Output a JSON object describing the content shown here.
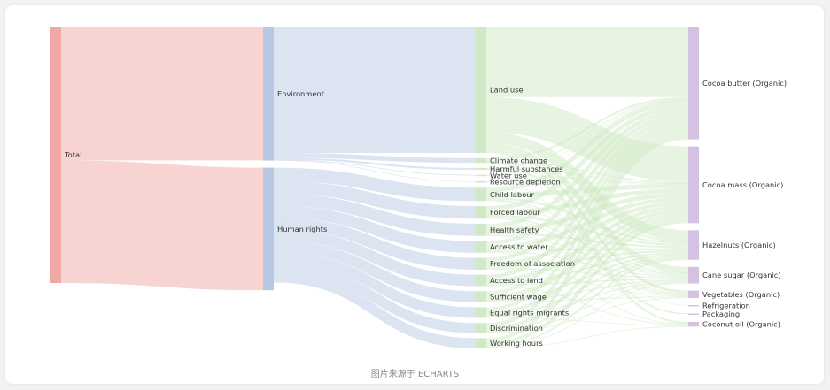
{
  "caption": "图片来源于 ECHARTS",
  "chart_data": {
    "type": "sankey",
    "colors": {
      "Total": "#f0a9a6",
      "Environment": "#b7c9e2",
      "Human rights": "#b7c9e2",
      "stage3": "#cfeac4",
      "stage4": "#d5c2e2"
    },
    "nodes": [
      {
        "name": "Total",
        "depth": 0
      },
      {
        "name": "Environment",
        "depth": 1
      },
      {
        "name": "Human rights",
        "depth": 1
      },
      {
        "name": "Land use",
        "depth": 2
      },
      {
        "name": "Climate change",
        "depth": 2
      },
      {
        "name": "Harmful substances",
        "depth": 2
      },
      {
        "name": "Water use",
        "depth": 2
      },
      {
        "name": "Resource depletion",
        "depth": 2
      },
      {
        "name": "Child labour",
        "depth": 2
      },
      {
        "name": "Forced labour",
        "depth": 2
      },
      {
        "name": "Health safety",
        "depth": 2
      },
      {
        "name": "Access to water",
        "depth": 2
      },
      {
        "name": "Freedom of association",
        "depth": 2
      },
      {
        "name": "Access to land",
        "depth": 2
      },
      {
        "name": "Sufficient wage",
        "depth": 2
      },
      {
        "name": "Equal rights migrants",
        "depth": 2
      },
      {
        "name": "Discrimination",
        "depth": 2
      },
      {
        "name": "Working hours",
        "depth": 2
      },
      {
        "name": "Cocoa butter (Organic)",
        "depth": 3
      },
      {
        "name": "Cocoa mass (Organic)",
        "depth": 3
      },
      {
        "name": "Hazelnuts (Organic)",
        "depth": 3
      },
      {
        "name": "Cane sugar (Organic)",
        "depth": 3
      },
      {
        "name": "Vegetables (Organic)",
        "depth": 3
      },
      {
        "name": "Refrigeration",
        "depth": 3
      },
      {
        "name": "Packaging",
        "depth": 3
      },
      {
        "name": "Coconut oil (Organic)",
        "depth": 3
      }
    ],
    "links": [
      {
        "source": "Total",
        "target": "Environment",
        "value": 0.342
      },
      {
        "source": "Total",
        "target": "Human rights",
        "value": 0.313
      },
      {
        "source": "Environment",
        "target": "Land use",
        "value": 0.323
      },
      {
        "source": "Environment",
        "target": "Climate change",
        "value": 0.012
      },
      {
        "source": "Environment",
        "target": "Harmful substances",
        "value": 0.0046
      },
      {
        "source": "Environment",
        "target": "Water use",
        "value": 0.0017
      },
      {
        "source": "Environment",
        "target": "Resource depletion",
        "value": 0.0011
      },
      {
        "source": "Human rights",
        "target": "Child labour",
        "value": 0.034
      },
      {
        "source": "Human rights",
        "target": "Forced labour",
        "value": 0.032
      },
      {
        "source": "Human rights",
        "target": "Health safety",
        "value": 0.031
      },
      {
        "source": "Human rights",
        "target": "Access to water",
        "value": 0.03
      },
      {
        "source": "Human rights",
        "target": "Freedom of association",
        "value": 0.03
      },
      {
        "source": "Human rights",
        "target": "Access to land",
        "value": 0.029
      },
      {
        "source": "Human rights",
        "target": "Sufficient wage",
        "value": 0.028
      },
      {
        "source": "Human rights",
        "target": "Equal rights migrants",
        "value": 0.027
      },
      {
        "source": "Human rights",
        "target": "Discrimination",
        "value": 0.026
      },
      {
        "source": "Human rights",
        "target": "Working hours",
        "value": 0.026
      },
      {
        "source": "Land use",
        "target": "Cocoa butter (Organic)",
        "value": 0.18
      },
      {
        "source": "Land use",
        "target": "Cocoa mass (Organic)",
        "value": 0.09
      },
      {
        "source": "Land use",
        "target": "Hazelnuts (Organic)",
        "value": 0.028
      },
      {
        "source": "Land use",
        "target": "Cane sugar (Organic)",
        "value": 0.014
      },
      {
        "source": "Land use",
        "target": "Vegetables (Organic)",
        "value": 0.007
      },
      {
        "source": "Land use",
        "target": "Coconut oil (Organic)",
        "value": 0.004
      },
      {
        "source": "Climate change",
        "target": "Cocoa butter (Organic)",
        "value": 0.0051
      },
      {
        "source": "Climate change",
        "target": "Cocoa mass (Organic)",
        "value": 0.0029
      },
      {
        "source": "Climate change",
        "target": "Hazelnuts (Organic)",
        "value": 0.0014
      },
      {
        "source": "Climate change",
        "target": "Cane sugar (Organic)",
        "value": 0.0011
      },
      {
        "source": "Climate change",
        "target": "Refrigeration",
        "value": 0.0006
      },
      {
        "source": "Climate change",
        "target": "Packaging",
        "value": 0.0005
      },
      {
        "source": "Climate change",
        "target": "Coconut oil (Organic)",
        "value": 0.0004
      },
      {
        "source": "Harmful substances",
        "target": "Cocoa butter (Organic)",
        "value": 0.002
      },
      {
        "source": "Harmful substances",
        "target": "Cocoa mass (Organic)",
        "value": 0.0012
      },
      {
        "source": "Harmful substances",
        "target": "Hazelnuts (Organic)",
        "value": 0.0006
      },
      {
        "source": "Harmful substances",
        "target": "Cane sugar (Organic)",
        "value": 0.0004
      },
      {
        "source": "Harmful substances",
        "target": "Packaging",
        "value": 0.0004
      },
      {
        "source": "Water use",
        "target": "Cocoa butter (Organic)",
        "value": 0.0007
      },
      {
        "source": "Water use",
        "target": "Cocoa mass (Organic)",
        "value": 0.0005
      },
      {
        "source": "Water use",
        "target": "Hazelnuts (Organic)",
        "value": 0.0005
      },
      {
        "source": "Resource depletion",
        "target": "Cocoa butter (Organic)",
        "value": 0.0004
      },
      {
        "source": "Resource depletion",
        "target": "Cocoa mass (Organic)",
        "value": 0.0003
      },
      {
        "source": "Resource depletion",
        "target": "Packaging",
        "value": 0.0004
      },
      {
        "source": "Child labour",
        "target": "Cocoa butter (Organic)",
        "value": 0.012
      },
      {
        "source": "Child labour",
        "target": "Cocoa mass (Organic)",
        "value": 0.012
      },
      {
        "source": "Child labour",
        "target": "Hazelnuts (Organic)",
        "value": 0.005
      },
      {
        "source": "Child labour",
        "target": "Cane sugar (Organic)",
        "value": 0.003
      },
      {
        "source": "Child labour",
        "target": "Vegetables (Organic)",
        "value": 0.002
      },
      {
        "source": "Forced labour",
        "target": "Cocoa butter (Organic)",
        "value": 0.011
      },
      {
        "source": "Forced labour",
        "target": "Cocoa mass (Organic)",
        "value": 0.011
      },
      {
        "source": "Forced labour",
        "target": "Hazelnuts (Organic)",
        "value": 0.005
      },
      {
        "source": "Forced labour",
        "target": "Cane sugar (Organic)",
        "value": 0.003
      },
      {
        "source": "Forced labour",
        "target": "Vegetables (Organic)",
        "value": 0.002
      },
      {
        "source": "Health safety",
        "target": "Cocoa butter (Organic)",
        "value": 0.011
      },
      {
        "source": "Health safety",
        "target": "Cocoa mass (Organic)",
        "value": 0.011
      },
      {
        "source": "Health safety",
        "target": "Hazelnuts (Organic)",
        "value": 0.005
      },
      {
        "source": "Health safety",
        "target": "Cane sugar (Organic)",
        "value": 0.002
      },
      {
        "source": "Health safety",
        "target": "Vegetables (Organic)",
        "value": 0.002
      },
      {
        "source": "Access to water",
        "target": "Cocoa butter (Organic)",
        "value": 0.01
      },
      {
        "source": "Access to water",
        "target": "Cocoa mass (Organic)",
        "value": 0.01
      },
      {
        "source": "Access to water",
        "target": "Hazelnuts (Organic)",
        "value": 0.005
      },
      {
        "source": "Access to water",
        "target": "Cane sugar (Organic)",
        "value": 0.003
      },
      {
        "source": "Access to water",
        "target": "Coconut oil (Organic)",
        "value": 0.002
      },
      {
        "source": "Freedom of association",
        "target": "Cocoa butter (Organic)",
        "value": 0.01
      },
      {
        "source": "Freedom of association",
        "target": "Cocoa mass (Organic)",
        "value": 0.01
      },
      {
        "source": "Freedom of association",
        "target": "Hazelnuts (Organic)",
        "value": 0.005
      },
      {
        "source": "Freedom of association",
        "target": "Cane sugar (Organic)",
        "value": 0.003
      },
      {
        "source": "Freedom of association",
        "target": "Vegetables (Organic)",
        "value": 0.002
      },
      {
        "source": "Access to land",
        "target": "Cocoa butter (Organic)",
        "value": 0.01
      },
      {
        "source": "Access to land",
        "target": "Cocoa mass (Organic)",
        "value": 0.01
      },
      {
        "source": "Access to land",
        "target": "Hazelnuts (Organic)",
        "value": 0.004
      },
      {
        "source": "Access to land",
        "target": "Cane sugar (Organic)",
        "value": 0.003
      },
      {
        "source": "Access to land",
        "target": "Coconut oil (Organic)",
        "value": 0.002
      },
      {
        "source": "Sufficient wage",
        "target": "Cocoa butter (Organic)",
        "value": 0.009
      },
      {
        "source": "Sufficient wage",
        "target": "Cocoa mass (Organic)",
        "value": 0.01
      },
      {
        "source": "Sufficient wage",
        "target": "Hazelnuts (Organic)",
        "value": 0.004
      },
      {
        "source": "Sufficient wage",
        "target": "Cane sugar (Organic)",
        "value": 0.003
      },
      {
        "source": "Sufficient wage",
        "target": "Vegetables (Organic)",
        "value": 0.002
      },
      {
        "source": "Equal rights migrants",
        "target": "Cocoa butter (Organic)",
        "value": 0.009
      },
      {
        "source": "Equal rights migrants",
        "target": "Cocoa mass (Organic)",
        "value": 0.009
      },
      {
        "source": "Equal rights migrants",
        "target": "Hazelnuts (Organic)",
        "value": 0.004
      },
      {
        "source": "Equal rights migrants",
        "target": "Cane sugar (Organic)",
        "value": 0.003
      },
      {
        "source": "Equal rights migrants",
        "target": "Coconut oil (Organic)",
        "value": 0.002
      },
      {
        "source": "Discrimination",
        "target": "Cocoa butter (Organic)",
        "value": 0.009
      },
      {
        "source": "Discrimination",
        "target": "Cocoa mass (Organic)",
        "value": 0.009
      },
      {
        "source": "Discrimination",
        "target": "Hazelnuts (Organic)",
        "value": 0.004
      },
      {
        "source": "Discrimination",
        "target": "Cane sugar (Organic)",
        "value": 0.002
      },
      {
        "source": "Discrimination",
        "target": "Vegetables (Organic)",
        "value": 0.002
      },
      {
        "source": "Working hours",
        "target": "Cocoa butter (Organic)",
        "value": 0.009
      },
      {
        "source": "Working hours",
        "target": "Cocoa mass (Organic)",
        "value": 0.009
      },
      {
        "source": "Working hours",
        "target": "Hazelnuts (Organic)",
        "value": 0.004
      },
      {
        "source": "Working hours",
        "target": "Cane sugar (Organic)",
        "value": 0.002
      },
      {
        "source": "Working hours",
        "target": "Coconut oil (Organic)",
        "value": 0.002
      }
    ]
  }
}
